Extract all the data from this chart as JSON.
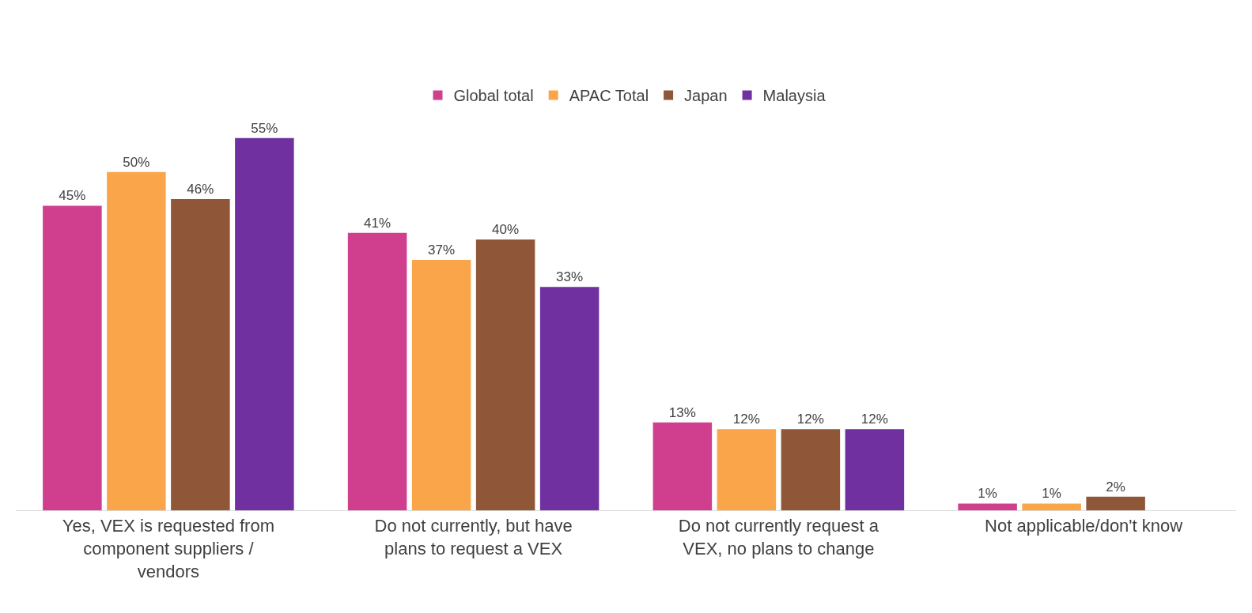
{
  "chart_data": {
    "type": "bar",
    "categories": [
      "Yes, VEX is requested from component suppliers / vendors",
      "Do not currently, but have plans to request a VEX",
      "Do not currently request a VEX, no plans to change",
      "Not applicable/don't know"
    ],
    "series": [
      {
        "name": "Global total",
        "color": "#d03f8e",
        "values": [
          45,
          41,
          13,
          1
        ],
        "value_labels": [
          "45%",
          "41%",
          "13%",
          "1%"
        ]
      },
      {
        "name": "APAC Total",
        "color": "#fba54a",
        "values": [
          50,
          37,
          12,
          1
        ],
        "value_labels": [
          "50%",
          "37%",
          "12%",
          "1%"
        ]
      },
      {
        "name": "Japan",
        "color": "#8f5738",
        "values": [
          46,
          40,
          12,
          2
        ],
        "value_labels": [
          "46%",
          "40%",
          "12%",
          "2%"
        ]
      },
      {
        "name": "Malaysia",
        "color": "#7030a0",
        "values": [
          55,
          33,
          12,
          null
        ],
        "value_labels": [
          "55%",
          "33%",
          "12%",
          null
        ]
      }
    ],
    "legend": "top"
  }
}
